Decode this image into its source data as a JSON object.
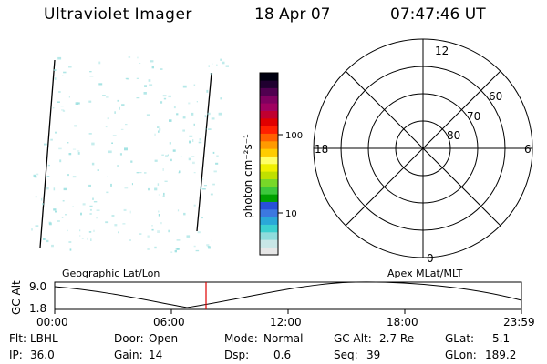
{
  "header": {
    "title": "Ultraviolet Imager",
    "date": "18 Apr 07",
    "time": "07:47:46 UT"
  },
  "colorbar": {
    "unit_label": "photon cm⁻²s⁻¹",
    "tick_100": "100",
    "tick_10": "10",
    "colors": [
      "#e6e6e6",
      "#c8e6e6",
      "#8fdcdc",
      "#3cd0d0",
      "#2aa8d8",
      "#3c78e0",
      "#2850d8",
      "#00a000",
      "#3cc83c",
      "#78d828",
      "#c0e000",
      "#f0f000",
      "#ffff66",
      "#ffcc00",
      "#ff9a00",
      "#ff6000",
      "#ff2000",
      "#e00000",
      "#c00030",
      "#a00060",
      "#800060",
      "#500050",
      "#200030",
      "#000010"
    ]
  },
  "polar": {
    "mlt_12": "12",
    "mlt_18": "18",
    "mlt_6": "6",
    "mlt_0": "0",
    "lat_60": "60",
    "lat_70": "70",
    "lat_80": "80"
  },
  "altplot": {
    "ylabel": "GC Alt",
    "y_max": "9.0",
    "y_min": "1.8",
    "left_label": "Geographic Lat/Lon",
    "right_label": "Apex MLat/MLT",
    "ticks": [
      "00:00",
      "06:00",
      "12:00",
      "18:00",
      "23:59"
    ]
  },
  "info": {
    "flt_label": "Flt:",
    "flt_value": "LBHL",
    "door_label": "Door:",
    "door_value": "Open",
    "mode_label": "Mode:",
    "mode_value": "Normal",
    "gcalt_label": "GC Alt:",
    "gcalt_value": "2.7 Re",
    "glat_label": "GLat:",
    "glat_value": "5.1",
    "ip_label": "IP:",
    "ip_value": "36.0",
    "gain_label": "Gain:",
    "gain_value": "14",
    "dsp_label": "Dsp:",
    "dsp_value": "0.6",
    "seq_label": "Seq:",
    "seq_value": "39",
    "glon_label": "GLon:",
    "glon_value": "189.2"
  },
  "colors": {
    "speckle": "#8fdcdc",
    "marker": "#e00000"
  }
}
